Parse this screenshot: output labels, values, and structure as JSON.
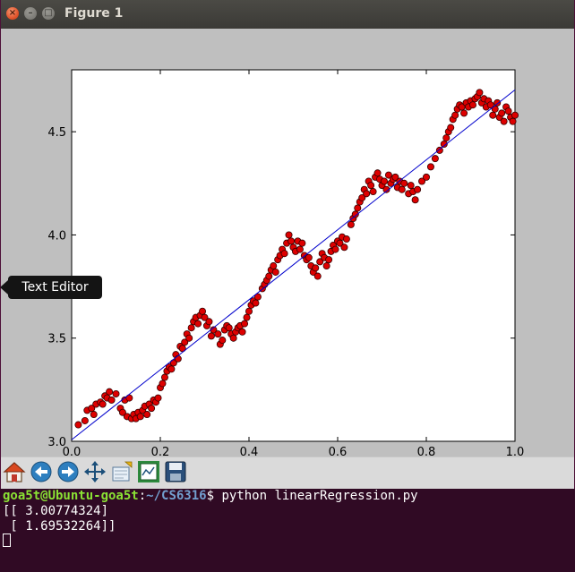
{
  "window": {
    "title": "Figure 1",
    "close_glyph": "×",
    "min_glyph": "–",
    "max_glyph": "□"
  },
  "tooltip": {
    "label": "Text Editor"
  },
  "toolbar": {
    "tools": [
      {
        "name": "home-button",
        "icon": "home-icon"
      },
      {
        "name": "back-button",
        "icon": "arrow-left-icon"
      },
      {
        "name": "forward-button",
        "icon": "arrow-right-icon"
      },
      {
        "name": "pan-button",
        "icon": "move-icon"
      },
      {
        "name": "zoom-button",
        "icon": "zoom-rect-icon"
      },
      {
        "name": "configure-subplots-button",
        "icon": "subplots-icon"
      },
      {
        "name": "save-button",
        "icon": "floppy-icon"
      }
    ]
  },
  "terminal": {
    "prompt_user": "goa5t@Ubuntu-goa5t",
    "prompt_sep": ":",
    "prompt_path": "~/CS6316",
    "prompt_end": "$ ",
    "command": "python linearRegression.py",
    "output": [
      "[[ 3.00774324]",
      " [ 1.69532264]]"
    ]
  },
  "chart_data": {
    "type": "scatter",
    "xlim": [
      0.0,
      1.0
    ],
    "ylim": [
      3.0,
      4.8
    ],
    "xticks": [
      "0.0",
      "0.2",
      "0.4",
      "0.6",
      "0.8",
      "1.0"
    ],
    "yticks": [
      "3.0",
      "3.5",
      "4.0",
      "4.5"
    ],
    "xtick_values": [
      0.0,
      0.2,
      0.4,
      0.6,
      0.8,
      1.0
    ],
    "ytick_values": [
      3.0,
      3.5,
      4.0,
      4.5
    ],
    "colors": {
      "points": "#dd0000",
      "line": "#0000cc"
    },
    "fit_line": {
      "intercept": 3.00774324,
      "slope": 1.69532264
    },
    "points": [
      [
        0.015,
        3.08
      ],
      [
        0.03,
        3.1
      ],
      [
        0.035,
        3.15
      ],
      [
        0.045,
        3.16
      ],
      [
        0.05,
        3.13
      ],
      [
        0.055,
        3.18
      ],
      [
        0.065,
        3.19
      ],
      [
        0.07,
        3.18
      ],
      [
        0.075,
        3.22
      ],
      [
        0.08,
        3.21
      ],
      [
        0.085,
        3.24
      ],
      [
        0.09,
        3.2
      ],
      [
        0.1,
        3.23
      ],
      [
        0.11,
        3.16
      ],
      [
        0.115,
        3.14
      ],
      [
        0.12,
        3.2
      ],
      [
        0.125,
        3.12
      ],
      [
        0.13,
        3.21
      ],
      [
        0.135,
        3.11
      ],
      [
        0.14,
        3.13
      ],
      [
        0.145,
        3.11
      ],
      [
        0.15,
        3.14
      ],
      [
        0.155,
        3.12
      ],
      [
        0.16,
        3.15
      ],
      [
        0.165,
        3.17
      ],
      [
        0.17,
        3.13
      ],
      [
        0.175,
        3.18
      ],
      [
        0.18,
        3.16
      ],
      [
        0.185,
        3.2
      ],
      [
        0.19,
        3.19
      ],
      [
        0.195,
        3.21
      ],
      [
        0.2,
        3.26
      ],
      [
        0.205,
        3.28
      ],
      [
        0.21,
        3.31
      ],
      [
        0.215,
        3.34
      ],
      [
        0.22,
        3.36
      ],
      [
        0.225,
        3.35
      ],
      [
        0.23,
        3.38
      ],
      [
        0.235,
        3.42
      ],
      [
        0.24,
        3.4
      ],
      [
        0.245,
        3.46
      ],
      [
        0.25,
        3.45
      ],
      [
        0.255,
        3.48
      ],
      [
        0.26,
        3.52
      ],
      [
        0.265,
        3.5
      ],
      [
        0.27,
        3.55
      ],
      [
        0.275,
        3.58
      ],
      [
        0.28,
        3.6
      ],
      [
        0.285,
        3.57
      ],
      [
        0.29,
        3.61
      ],
      [
        0.295,
        3.63
      ],
      [
        0.3,
        3.6
      ],
      [
        0.305,
        3.56
      ],
      [
        0.31,
        3.58
      ],
      [
        0.315,
        3.51
      ],
      [
        0.32,
        3.54
      ],
      [
        0.33,
        3.52
      ],
      [
        0.335,
        3.47
      ],
      [
        0.34,
        3.49
      ],
      [
        0.345,
        3.54
      ],
      [
        0.35,
        3.56
      ],
      [
        0.355,
        3.55
      ],
      [
        0.36,
        3.52
      ],
      [
        0.365,
        3.5
      ],
      [
        0.37,
        3.53
      ],
      [
        0.375,
        3.55
      ],
      [
        0.38,
        3.56
      ],
      [
        0.385,
        3.53
      ],
      [
        0.39,
        3.57
      ],
      [
        0.395,
        3.6
      ],
      [
        0.4,
        3.63
      ],
      [
        0.405,
        3.66
      ],
      [
        0.41,
        3.68
      ],
      [
        0.415,
        3.67
      ],
      [
        0.42,
        3.7
      ],
      [
        0.43,
        3.74
      ],
      [
        0.435,
        3.76
      ],
      [
        0.44,
        3.78
      ],
      [
        0.445,
        3.8
      ],
      [
        0.45,
        3.83
      ],
      [
        0.455,
        3.85
      ],
      [
        0.46,
        3.82
      ],
      [
        0.465,
        3.88
      ],
      [
        0.47,
        3.9
      ],
      [
        0.475,
        3.93
      ],
      [
        0.48,
        3.91
      ],
      [
        0.485,
        3.96
      ],
      [
        0.49,
        4.0
      ],
      [
        0.495,
        3.97
      ],
      [
        0.5,
        3.94
      ],
      [
        0.505,
        3.92
      ],
      [
        0.51,
        3.97
      ],
      [
        0.515,
        3.93
      ],
      [
        0.52,
        3.96
      ],
      [
        0.525,
        3.9
      ],
      [
        0.53,
        3.88
      ],
      [
        0.535,
        3.89
      ],
      [
        0.54,
        3.85
      ],
      [
        0.545,
        3.82
      ],
      [
        0.55,
        3.84
      ],
      [
        0.555,
        3.8
      ],
      [
        0.56,
        3.87
      ],
      [
        0.565,
        3.91
      ],
      [
        0.57,
        3.89
      ],
      [
        0.575,
        3.85
      ],
      [
        0.58,
        3.88
      ],
      [
        0.585,
        3.92
      ],
      [
        0.59,
        3.95
      ],
      [
        0.595,
        3.93
      ],
      [
        0.6,
        3.97
      ],
      [
        0.605,
        3.96
      ],
      [
        0.61,
        3.99
      ],
      [
        0.615,
        3.94
      ],
      [
        0.62,
        3.98
      ],
      [
        0.63,
        4.05
      ],
      [
        0.635,
        4.08
      ],
      [
        0.64,
        4.1
      ],
      [
        0.645,
        4.13
      ],
      [
        0.65,
        4.16
      ],
      [
        0.655,
        4.18
      ],
      [
        0.66,
        4.22
      ],
      [
        0.665,
        4.2
      ],
      [
        0.67,
        4.26
      ],
      [
        0.675,
        4.24
      ],
      [
        0.68,
        4.21
      ],
      [
        0.685,
        4.28
      ],
      [
        0.69,
        4.3
      ],
      [
        0.695,
        4.27
      ],
      [
        0.7,
        4.24
      ],
      [
        0.705,
        4.26
      ],
      [
        0.71,
        4.22
      ],
      [
        0.715,
        4.29
      ],
      [
        0.72,
        4.25
      ],
      [
        0.725,
        4.27
      ],
      [
        0.73,
        4.28
      ],
      [
        0.735,
        4.23
      ],
      [
        0.74,
        4.26
      ],
      [
        0.745,
        4.22
      ],
      [
        0.75,
        4.25
      ],
      [
        0.76,
        4.2
      ],
      [
        0.765,
        4.24
      ],
      [
        0.77,
        4.21
      ],
      [
        0.775,
        4.17
      ],
      [
        0.78,
        4.22
      ],
      [
        0.79,
        4.26
      ],
      [
        0.8,
        4.28
      ],
      [
        0.81,
        4.33
      ],
      [
        0.82,
        4.37
      ],
      [
        0.83,
        4.41
      ],
      [
        0.84,
        4.44
      ],
      [
        0.845,
        4.47
      ],
      [
        0.85,
        4.5
      ],
      [
        0.855,
        4.52
      ],
      [
        0.86,
        4.56
      ],
      [
        0.865,
        4.58
      ],
      [
        0.87,
        4.61
      ],
      [
        0.875,
        4.63
      ],
      [
        0.88,
        4.62
      ],
      [
        0.885,
        4.59
      ],
      [
        0.89,
        4.64
      ],
      [
        0.895,
        4.62
      ],
      [
        0.9,
        4.65
      ],
      [
        0.905,
        4.63
      ],
      [
        0.91,
        4.66
      ],
      [
        0.915,
        4.67
      ],
      [
        0.92,
        4.69
      ],
      [
        0.925,
        4.64
      ],
      [
        0.93,
        4.66
      ],
      [
        0.935,
        4.62
      ],
      [
        0.94,
        4.65
      ],
      [
        0.945,
        4.63
      ],
      [
        0.95,
        4.58
      ],
      [
        0.955,
        4.61
      ],
      [
        0.96,
        4.64
      ],
      [
        0.965,
        4.57
      ],
      [
        0.97,
        4.59
      ],
      [
        0.975,
        4.55
      ],
      [
        0.98,
        4.62
      ],
      [
        0.985,
        4.6
      ],
      [
        0.99,
        4.57
      ],
      [
        0.995,
        4.55
      ],
      [
        1.0,
        4.58
      ]
    ]
  }
}
